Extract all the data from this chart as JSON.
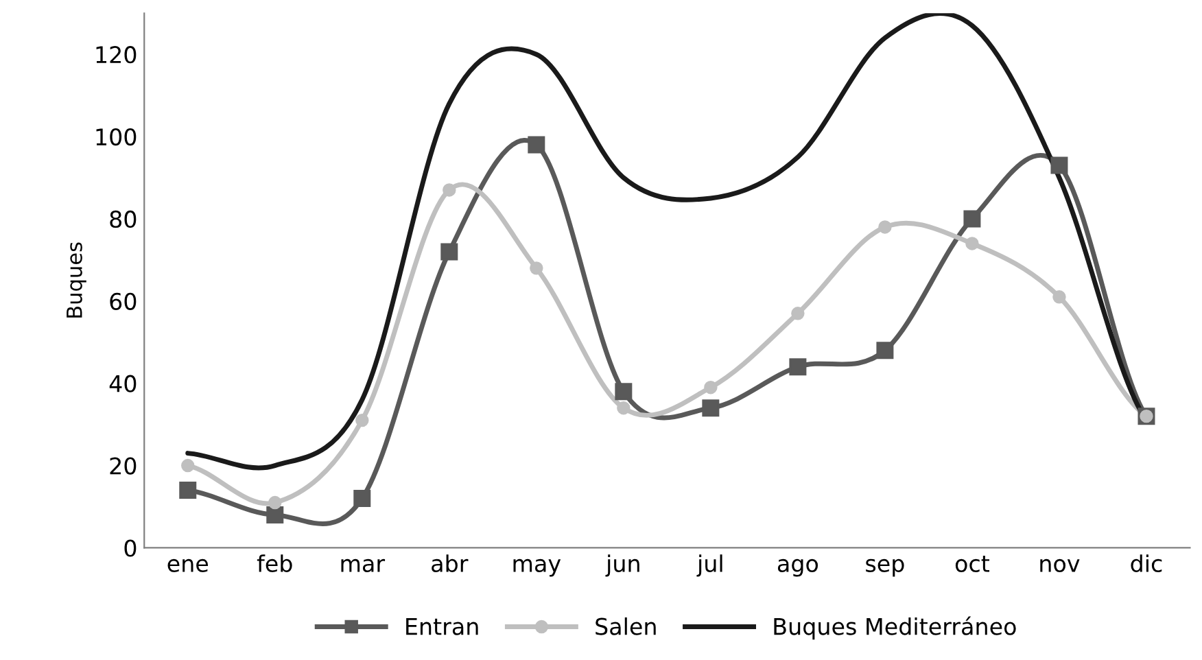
{
  "chart_data": {
    "type": "line",
    "ylabel": "Buques",
    "categories": [
      "ene",
      "feb",
      "mar",
      "abr",
      "may",
      "jun",
      "jul",
      "ago",
      "sep",
      "oct",
      "nov",
      "dic"
    ],
    "ylim": [
      0,
      130
    ],
    "yticks": [
      0,
      20,
      40,
      60,
      80,
      100,
      120
    ],
    "grid": false,
    "legend": "bottom",
    "line_style": "solid",
    "series": [
      {
        "name": "Entran",
        "color": "#595959",
        "marker": "square",
        "values": [
          14,
          8,
          12,
          72,
          98,
          38,
          34,
          44,
          48,
          80,
          93,
          32
        ]
      },
      {
        "name": "Salen",
        "color": "#bfbfbf",
        "marker": "circle",
        "values": [
          20,
          11,
          31,
          87,
          68,
          34,
          39,
          57,
          78,
          74,
          61,
          32
        ]
      },
      {
        "name": "Buques Mediterráneo",
        "color": "#1a1a1a",
        "marker": "none",
        "values": [
          23,
          20,
          36,
          108,
          120,
          90,
          85,
          95,
          124,
          127,
          90,
          31
        ]
      }
    ]
  }
}
